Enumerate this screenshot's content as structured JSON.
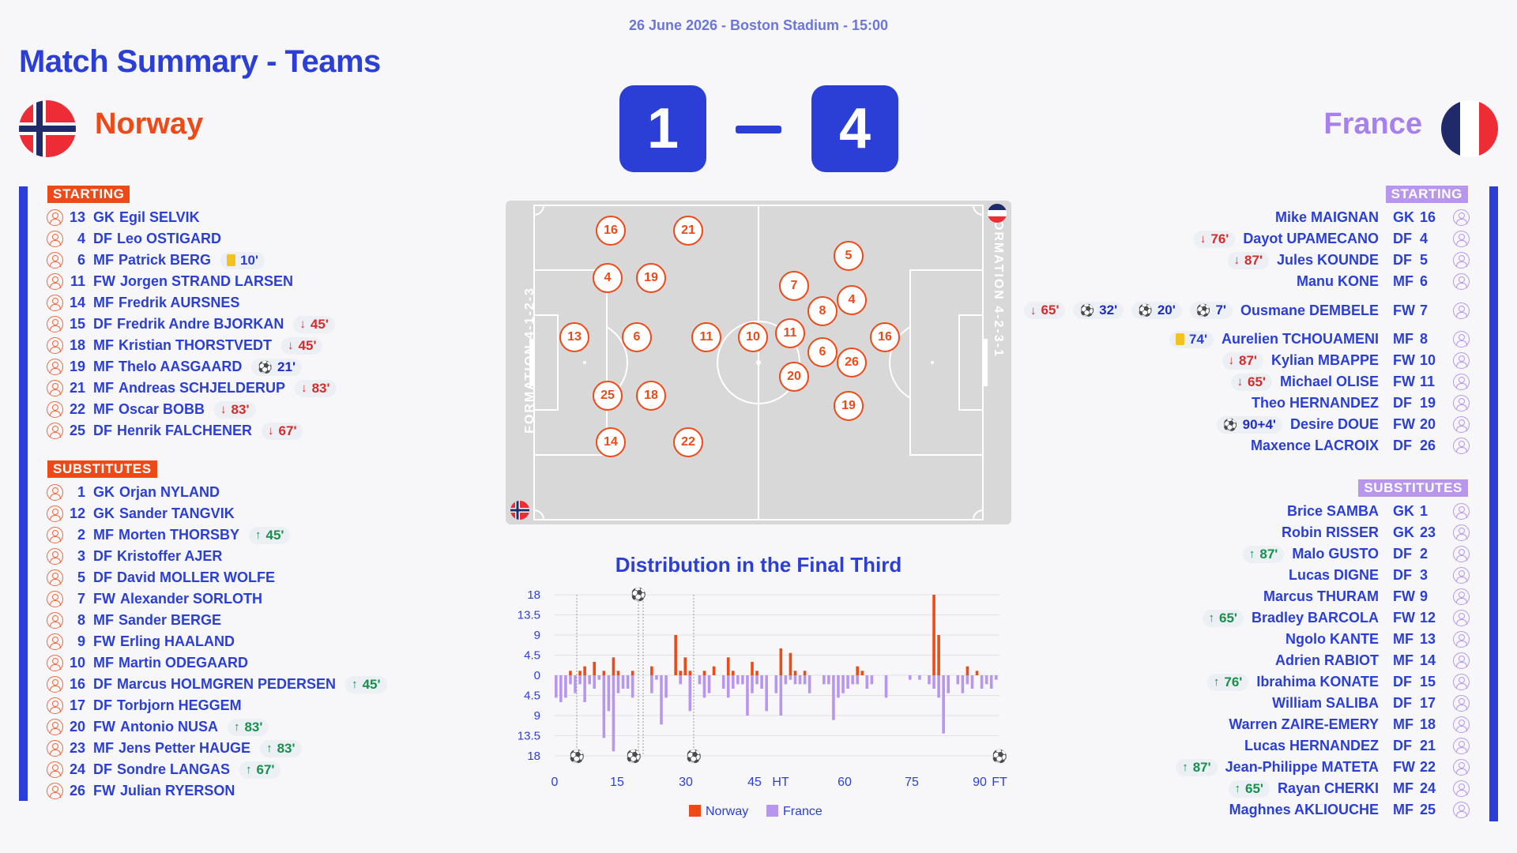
{
  "meta": "26 June 2026 - Boston Stadium - 15:00",
  "title": "Match Summary - Teams",
  "home": {
    "name": "Norway",
    "score": "1",
    "color": "#ee4a17"
  },
  "away": {
    "name": "France",
    "score": "4",
    "color": "#a67ff0"
  },
  "accent": "#2b3fd6",
  "home_starting_label": "STARTING",
  "home_subs_label": "SUBSTITUTES",
  "away_starting_label": "STARTING",
  "away_subs_label": "SUBSTITUTES",
  "home_starting": [
    {
      "num": "13",
      "pos": "GK",
      "name": "Egil SELVIK",
      "events": []
    },
    {
      "num": "4",
      "pos": "DF",
      "name": "Leo OSTIGARD",
      "events": []
    },
    {
      "num": "6",
      "pos": "MF",
      "name": "Patrick BERG",
      "events": [
        {
          "type": "yellow",
          "text": "10'"
        }
      ]
    },
    {
      "num": "11",
      "pos": "FW",
      "name": "Jorgen STRAND LARSEN",
      "events": []
    },
    {
      "num": "14",
      "pos": "MF",
      "name": "Fredrik AURSNES",
      "events": []
    },
    {
      "num": "15",
      "pos": "DF",
      "name": "Fredrik Andre BJORKAN",
      "events": [
        {
          "type": "off",
          "text": "45'"
        }
      ]
    },
    {
      "num": "18",
      "pos": "MF",
      "name": "Kristian THORSTVEDT",
      "events": [
        {
          "type": "off",
          "text": "45'"
        }
      ]
    },
    {
      "num": "19",
      "pos": "MF",
      "name": "Thelo AASGAARD",
      "events": [
        {
          "type": "goal",
          "text": "21'"
        }
      ]
    },
    {
      "num": "21",
      "pos": "MF",
      "name": "Andreas SCHJELDERUP",
      "events": [
        {
          "type": "off",
          "text": "83'"
        }
      ]
    },
    {
      "num": "22",
      "pos": "MF",
      "name": "Oscar BOBB",
      "events": [
        {
          "type": "off",
          "text": "83'"
        }
      ]
    },
    {
      "num": "25",
      "pos": "DF",
      "name": "Henrik FALCHENER",
      "events": [
        {
          "type": "off",
          "text": "67'"
        }
      ]
    }
  ],
  "home_subs": [
    {
      "num": "1",
      "pos": "GK",
      "name": "Orjan NYLAND",
      "events": []
    },
    {
      "num": "12",
      "pos": "GK",
      "name": "Sander TANGVIK",
      "events": []
    },
    {
      "num": "2",
      "pos": "MF",
      "name": "Morten THORSBY",
      "events": [
        {
          "type": "on",
          "text": "45'"
        }
      ]
    },
    {
      "num": "3",
      "pos": "DF",
      "name": "Kristoffer AJER",
      "events": []
    },
    {
      "num": "5",
      "pos": "DF",
      "name": "David MOLLER WOLFE",
      "events": []
    },
    {
      "num": "7",
      "pos": "FW",
      "name": "Alexander SORLOTH",
      "events": []
    },
    {
      "num": "8",
      "pos": "MF",
      "name": "Sander BERGE",
      "events": []
    },
    {
      "num": "9",
      "pos": "FW",
      "name": "Erling HAALAND",
      "events": []
    },
    {
      "num": "10",
      "pos": "MF",
      "name": "Martin ODEGAARD",
      "events": []
    },
    {
      "num": "16",
      "pos": "DF",
      "name": "Marcus HOLMGREN PEDERSEN",
      "events": [
        {
          "type": "on",
          "text": "45'"
        }
      ]
    },
    {
      "num": "17",
      "pos": "DF",
      "name": "Torbjorn HEGGEM",
      "events": []
    },
    {
      "num": "20",
      "pos": "FW",
      "name": "Antonio NUSA",
      "events": [
        {
          "type": "on",
          "text": "83'"
        }
      ]
    },
    {
      "num": "23",
      "pos": "MF",
      "name": "Jens Petter HAUGE",
      "events": [
        {
          "type": "on",
          "text": "83'"
        }
      ]
    },
    {
      "num": "24",
      "pos": "DF",
      "name": "Sondre LANGAS",
      "events": [
        {
          "type": "on",
          "text": "67'"
        }
      ]
    },
    {
      "num": "26",
      "pos": "FW",
      "name": "Julian RYERSON",
      "events": []
    }
  ],
  "away_starting": [
    {
      "num": "16",
      "pos": "GK",
      "name": "Mike MAIGNAN",
      "events": []
    },
    {
      "num": "4",
      "pos": "DF",
      "name": "Dayot UPAMECANO",
      "events": [
        {
          "type": "off",
          "text": "76'"
        }
      ]
    },
    {
      "num": "5",
      "pos": "DF",
      "name": "Jules KOUNDE",
      "events": [
        {
          "type": "off",
          "text": "87'"
        }
      ]
    },
    {
      "num": "6",
      "pos": "MF",
      "name": "Manu KONE",
      "events": []
    },
    {
      "num": "7",
      "pos": "FW",
      "name": "Ousmane DEMBELE",
      "events": [
        {
          "type": "off",
          "text": "65'"
        },
        {
          "type": "goal",
          "text": "32'"
        },
        {
          "type": "goal",
          "text": "20'"
        },
        {
          "type": "goal",
          "text": "7'"
        }
      ]
    },
    {
      "num": "8",
      "pos": "MF",
      "name": "Aurelien TCHOUAMENI",
      "events": [
        {
          "type": "yellow",
          "text": "74'"
        }
      ]
    },
    {
      "num": "10",
      "pos": "FW",
      "name": "Kylian MBAPPE",
      "events": [
        {
          "type": "off",
          "text": "87'"
        }
      ]
    },
    {
      "num": "11",
      "pos": "FW",
      "name": "Michael OLISE",
      "events": [
        {
          "type": "off",
          "text": "65'"
        }
      ]
    },
    {
      "num": "19",
      "pos": "DF",
      "name": "Theo HERNANDEZ",
      "events": []
    },
    {
      "num": "20",
      "pos": "FW",
      "name": "Desire DOUE",
      "events": [
        {
          "type": "goal",
          "text": "90+4'"
        }
      ]
    },
    {
      "num": "26",
      "pos": "DF",
      "name": "Maxence LACROIX",
      "events": []
    }
  ],
  "away_subs": [
    {
      "num": "1",
      "pos": "GK",
      "name": "Brice SAMBA",
      "events": []
    },
    {
      "num": "23",
      "pos": "GK",
      "name": "Robin RISSER",
      "events": []
    },
    {
      "num": "2",
      "pos": "DF",
      "name": "Malo GUSTO",
      "events": [
        {
          "type": "on",
          "text": "87'"
        }
      ]
    },
    {
      "num": "3",
      "pos": "DF",
      "name": "Lucas DIGNE",
      "events": []
    },
    {
      "num": "9",
      "pos": "FW",
      "name": "Marcus THURAM",
      "events": []
    },
    {
      "num": "12",
      "pos": "FW",
      "name": "Bradley BARCOLA",
      "events": [
        {
          "type": "on",
          "text": "65'"
        }
      ]
    },
    {
      "num": "13",
      "pos": "MF",
      "name": "Ngolo KANTE",
      "events": []
    },
    {
      "num": "14",
      "pos": "MF",
      "name": "Adrien RABIOT",
      "events": []
    },
    {
      "num": "15",
      "pos": "DF",
      "name": "Ibrahima KONATE",
      "events": [
        {
          "type": "on",
          "text": "76'"
        }
      ]
    },
    {
      "num": "17",
      "pos": "DF",
      "name": "William SALIBA",
      "events": []
    },
    {
      "num": "18",
      "pos": "MF",
      "name": "Warren ZAIRE-EMERY",
      "events": []
    },
    {
      "num": "21",
      "pos": "DF",
      "name": "Lucas HERNANDEZ",
      "events": []
    },
    {
      "num": "22",
      "pos": "FW",
      "name": "Jean-Philippe MATETA",
      "events": [
        {
          "type": "on",
          "text": "87'"
        }
      ]
    },
    {
      "num": "24",
      "pos": "MF",
      "name": "Rayan CHERKI",
      "events": [
        {
          "type": "on",
          "text": "65'"
        }
      ]
    },
    {
      "num": "25",
      "pos": "MF",
      "name": "Maghnes AKLIOUCHE",
      "events": []
    }
  ],
  "pitch": {
    "home_formation": "FORMATION 4-1-2-3",
    "away_formation": "FORMATION 4-2-3-1",
    "home_players": [
      "16",
      "21",
      "4",
      "19",
      "13",
      "6",
      "11",
      "25",
      "18",
      "14",
      "22"
    ],
    "away_players": [
      "5",
      "7",
      "4",
      "8",
      "10",
      "11",
      "16",
      "6",
      "26",
      "20",
      "19"
    ]
  },
  "chart_data": {
    "type": "bar",
    "title": "Distribution in the Final Third",
    "x_ticks": [
      "0",
      "15",
      "30",
      "45",
      "HT",
      "60",
      "75",
      "90",
      "FT"
    ],
    "y_ticks": [
      "18",
      "13.5",
      "9",
      "4.5",
      "0",
      "4.5",
      "9",
      "13.5",
      "18"
    ],
    "ylim": [
      -18,
      18
    ],
    "series": [
      {
        "name": "Norway",
        "color": "#ee4a17",
        "values": [
          0,
          0,
          0,
          1,
          0,
          1,
          2,
          0,
          3,
          0,
          1,
          0,
          4,
          1,
          0,
          0,
          1,
          0,
          0,
          0,
          2,
          0,
          0,
          0,
          0,
          9,
          1,
          4,
          1,
          0,
          0,
          1,
          0,
          2,
          0,
          0,
          4,
          1,
          0,
          0,
          0,
          3,
          1,
          0,
          0,
          0,
          0,
          6,
          0,
          5,
          1,
          0,
          1,
          0,
          0,
          0,
          0,
          0,
          0,
          0,
          0,
          0,
          0,
          2,
          1,
          0,
          0,
          0,
          0,
          0,
          0,
          0,
          0,
          0,
          0,
          0,
          0,
          0,
          0,
          18,
          9,
          0,
          0,
          0,
          0,
          0,
          2,
          0,
          1,
          0,
          0,
          0,
          0
        ]
      },
      {
        "name": "France",
        "color": "#b896ee",
        "values": [
          -5,
          -6,
          -5,
          -2,
          -4,
          -2,
          -6,
          -2,
          -3,
          -1,
          -14,
          -8,
          -17,
          -4,
          -3,
          -3,
          -5,
          0,
          0,
          0,
          -4,
          -1,
          -11,
          -5,
          0,
          0,
          -2,
          0,
          -8,
          0,
          -2,
          -5,
          -4,
          0,
          0,
          -3,
          -5,
          -3,
          -2,
          -2,
          -9,
          -4,
          -2,
          -3,
          -8,
          0,
          -4,
          -9,
          -2,
          -1,
          -2,
          -2,
          -2,
          -4,
          0,
          0,
          -2,
          -2,
          -10,
          -5,
          -4,
          -3,
          -2,
          -2,
          0,
          -3,
          -2,
          0,
          0,
          -5,
          0,
          0,
          0,
          0,
          -1,
          0,
          -1,
          0,
          -2,
          -3,
          -5,
          -13,
          -4,
          0,
          -2,
          -4,
          -2,
          -3,
          0,
          -3,
          -2,
          -3,
          -1
        ]
      }
    ],
    "norway_goal_minutes": [
      21
    ],
    "france_goal_minutes": [
      7,
      20,
      32,
      94
    ]
  }
}
